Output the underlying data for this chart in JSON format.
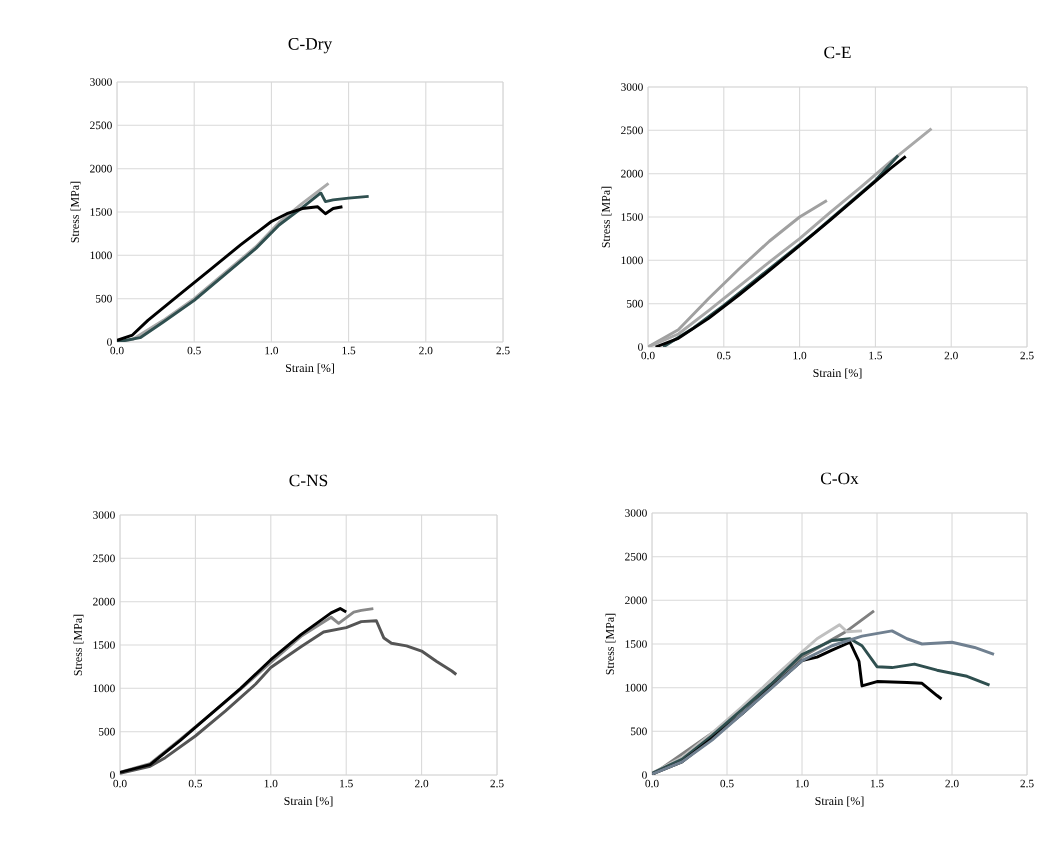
{
  "chart_data": [
    {
      "type": "line",
      "title": "C-Dry",
      "xlabel": "Strain [%]",
      "ylabel": "Stress [MPa]",
      "grid": true,
      "xlim": [
        0,
        2.5
      ],
      "ylim": [
        0,
        3000
      ],
      "xticks": [
        {
          "value": 0,
          "label": "0.0"
        },
        {
          "value": 0.5,
          "label": "0.5"
        },
        {
          "value": 1,
          "label": "1.0"
        },
        {
          "value": 1.5,
          "label": "1.5"
        },
        {
          "value": 2,
          "label": "2.0"
        },
        {
          "value": 2.5,
          "label": "2.5"
        }
      ],
      "yticks": [
        0,
        500,
        1000,
        1500,
        2000,
        2500,
        3000
      ],
      "series": [
        {
          "color": "#aaaaaa",
          "x": [
            0,
            0.1,
            0.3,
            0.5,
            0.7,
            0.9,
            1.05,
            1.2,
            1.37
          ],
          "values": [
            0,
            30,
            250,
            500,
            800,
            1100,
            1380,
            1600,
            1830
          ]
        },
        {
          "color": "#2f4f4f",
          "x": [
            0,
            0.15,
            0.3,
            0.5,
            0.7,
            0.9,
            1.05,
            1.2,
            1.32,
            1.35,
            1.4,
            1.5,
            1.63
          ],
          "values": [
            0,
            50,
            230,
            480,
            780,
            1080,
            1350,
            1550,
            1720,
            1620,
            1640,
            1660,
            1680
          ]
        },
        {
          "color": "#000000",
          "x": [
            0,
            0.1,
            0.2,
            0.4,
            0.6,
            0.8,
            1.0,
            1.1,
            1.2,
            1.3,
            1.35,
            1.4,
            1.46
          ],
          "values": [
            20,
            80,
            250,
            540,
            830,
            1120,
            1390,
            1480,
            1540,
            1560,
            1480,
            1540,
            1560
          ]
        }
      ]
    },
    {
      "type": "line",
      "title": "C-E",
      "xlabel": "Strain [%]",
      "ylabel": "Stress [MPa]",
      "grid": true,
      "xlim": [
        0,
        2.5
      ],
      "ylim": [
        0,
        3000
      ],
      "xticks": [
        {
          "value": 0,
          "label": "0.0"
        },
        {
          "value": 0.5,
          "label": "0.5"
        },
        {
          "value": 1,
          "label": "1.0"
        },
        {
          "value": 1.5,
          "label": "1.5"
        },
        {
          "value": 2,
          "label": "2.0"
        },
        {
          "value": 2.5,
          "label": "2.5"
        }
      ],
      "yticks": [
        0,
        500,
        1000,
        1500,
        2000,
        2500,
        3000
      ],
      "series": [
        {
          "color": "#a0a0a0",
          "x": [
            0,
            0.2,
            0.4,
            0.6,
            0.8,
            1.0,
            1.18
          ],
          "values": [
            0,
            200,
            560,
            900,
            1220,
            1500,
            1690
          ]
        },
        {
          "color": "#a8a8a8",
          "x": [
            0,
            0.2,
            0.4,
            0.6,
            0.8,
            1.0,
            1.2,
            1.4,
            1.6,
            1.87
          ],
          "values": [
            0,
            150,
            420,
            700,
            980,
            1250,
            1550,
            1840,
            2140,
            2520
          ]
        },
        {
          "color": "#2f4f4f",
          "x": [
            0.1,
            0.3,
            0.5,
            0.7,
            0.9,
            1.1,
            1.3,
            1.5,
            1.65
          ],
          "values": [
            0,
            220,
            480,
            760,
            1040,
            1320,
            1620,
            1920,
            2210
          ]
        },
        {
          "color": "#000000",
          "x": [
            0.05,
            0.2,
            0.4,
            0.6,
            0.8,
            1.0,
            1.2,
            1.4,
            1.6,
            1.7
          ],
          "values": [
            0,
            100,
            330,
            600,
            880,
            1170,
            1460,
            1760,
            2060,
            2200
          ]
        }
      ]
    },
    {
      "type": "line",
      "title": "C-NS",
      "xlabel": "Strain [%]",
      "ylabel": "Stress [MPa]",
      "grid": true,
      "xlim": [
        0,
        2.5
      ],
      "ylim": [
        0,
        3000
      ],
      "xticks": [
        {
          "value": 0,
          "label": "0.0"
        },
        {
          "value": 0.5,
          "label": "0.5"
        },
        {
          "value": 1,
          "label": "1.0"
        },
        {
          "value": 1.5,
          "label": "1.5"
        },
        {
          "value": 2,
          "label": "2.0"
        },
        {
          "value": 2.5,
          "label": "2.5"
        }
      ],
      "yticks": [
        0,
        500,
        1000,
        1500,
        2000,
        2500,
        3000
      ],
      "series": [
        {
          "color": "#555555",
          "x": [
            0,
            0.2,
            0.3,
            0.5,
            0.7,
            0.9,
            1.0,
            1.2,
            1.35,
            1.5,
            1.6,
            1.7,
            1.75,
            1.8,
            1.9,
            2.0,
            2.1,
            2.2,
            2.23
          ],
          "values": [
            20,
            100,
            200,
            450,
            740,
            1050,
            1240,
            1480,
            1650,
            1700,
            1770,
            1780,
            1580,
            1520,
            1490,
            1430,
            1310,
            1200,
            1160
          ]
        },
        {
          "color": "#888888",
          "x": [
            0,
            0.2,
            0.4,
            0.6,
            0.8,
            1.0,
            1.2,
            1.4,
            1.45,
            1.55,
            1.6,
            1.68
          ],
          "values": [
            30,
            130,
            410,
            700,
            990,
            1300,
            1600,
            1820,
            1750,
            1880,
            1900,
            1920
          ]
        },
        {
          "color": "#000000",
          "x": [
            0,
            0.2,
            0.4,
            0.6,
            0.8,
            1.0,
            1.2,
            1.4,
            1.46,
            1.5
          ],
          "values": [
            30,
            120,
            400,
            700,
            1000,
            1330,
            1620,
            1870,
            1920,
            1880
          ]
        }
      ]
    },
    {
      "type": "line",
      "title": "C-Ox",
      "xlabel": "Strain [%]",
      "ylabel": "Stress [MPa]",
      "grid": true,
      "xlim": [
        0,
        2.5
      ],
      "ylim": [
        0,
        3000
      ],
      "xticks": [
        {
          "value": 0,
          "label": "0.0"
        },
        {
          "value": 0.5,
          "label": "0.5"
        },
        {
          "value": 1,
          "label": "1.0"
        },
        {
          "value": 1.5,
          "label": "1.5"
        },
        {
          "value": 2,
          "label": "2.0"
        },
        {
          "value": 2.5,
          "label": "2.5"
        }
      ],
      "yticks": [
        0,
        500,
        1000,
        1500,
        2000,
        2500,
        3000
      ],
      "series": [
        {
          "color": "#808080",
          "x": [
            0,
            0.5,
            1.0,
            1.2,
            1.3,
            1.48
          ],
          "values": [
            0,
            600,
            1350,
            1550,
            1650,
            1880
          ]
        },
        {
          "color": "#c0c0c0",
          "x": [
            0,
            0.2,
            0.4,
            0.6,
            0.8,
            1.0,
            1.1,
            1.25,
            1.3,
            1.4
          ],
          "values": [
            20,
            200,
            480,
            780,
            1100,
            1410,
            1560,
            1720,
            1640,
            1650
          ]
        },
        {
          "color": "#2f4f4f",
          "x": [
            0,
            0.2,
            0.4,
            0.6,
            0.8,
            1.0,
            1.2,
            1.32,
            1.4,
            1.5,
            1.6,
            1.75,
            1.9,
            2.1,
            2.25
          ],
          "values": [
            20,
            180,
            450,
            750,
            1050,
            1380,
            1540,
            1560,
            1480,
            1240,
            1230,
            1270,
            1200,
            1130,
            1030
          ]
        },
        {
          "color": "#000000",
          "x": [
            0,
            0.2,
            0.4,
            0.6,
            0.8,
            1.0,
            1.1,
            1.2,
            1.32,
            1.38,
            1.4,
            1.5,
            1.7,
            1.8,
            1.9,
            1.93
          ],
          "values": [
            10,
            150,
            420,
            700,
            1010,
            1310,
            1350,
            1430,
            1520,
            1300,
            1020,
            1070,
            1060,
            1050,
            910,
            870
          ]
        },
        {
          "color": "#708090",
          "x": [
            0,
            0.2,
            0.4,
            0.6,
            0.8,
            1.0,
            1.2,
            1.4,
            1.6,
            1.7,
            1.8,
            2.0,
            2.15,
            2.28
          ],
          "values": [
            10,
            150,
            400,
            700,
            1000,
            1310,
            1480,
            1590,
            1650,
            1560,
            1500,
            1520,
            1460,
            1380
          ]
        }
      ]
    }
  ]
}
